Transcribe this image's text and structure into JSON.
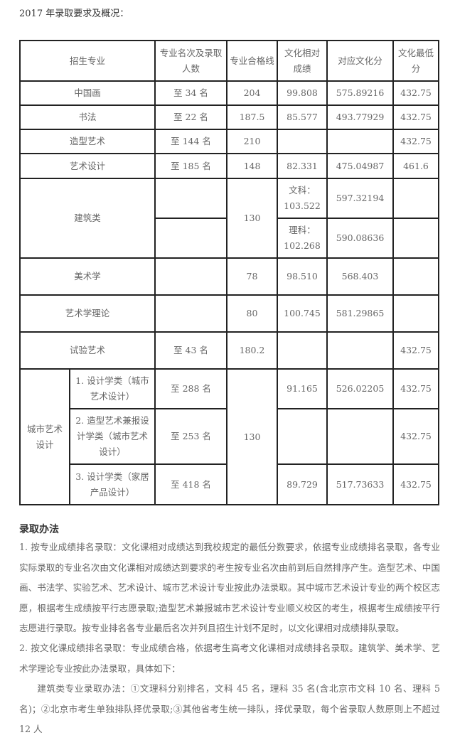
{
  "heading": "2017 年录取要求及概况：",
  "table": {
    "headers": [
      "招生专业",
      "专业名次及录取人数",
      "专业合格线",
      "文化相对成绩",
      "对应文化分",
      "文化最低分"
    ],
    "rows": [
      {
        "major": "中国画",
        "rank": "至 34 名",
        "pass": "204",
        "rel": "99.808",
        "score": "575.89216",
        "min": "432.75"
      },
      {
        "major": "书法",
        "rank": "至 22 名",
        "pass": "187.5",
        "rel": "85.577",
        "score": "493.77929",
        "min": "432.75"
      },
      {
        "major": "造型艺术",
        "rank": "至 144 名",
        "pass": "210",
        "rel": "",
        "score": "",
        "min": "432.75"
      },
      {
        "major": "艺术设计",
        "rank": "至 185 名",
        "pass": "148",
        "rel": "82.331",
        "score": "475.04987",
        "min": "461.6"
      }
    ],
    "arch": {
      "major": "建筑类",
      "pass": "130",
      "rel_wen": "文科：103.522",
      "score_wen": "597.32194",
      "rel_li": "理科：102.268",
      "score_li": "590.08636"
    },
    "rows2": [
      {
        "major": "美术学",
        "rank": "",
        "pass": "78",
        "rel": "98.510",
        "score": "568.403",
        "min": ""
      },
      {
        "major": "艺术学理论",
        "rank": "",
        "pass": "80",
        "rel": "100.745",
        "score": "581.29865",
        "min": ""
      },
      {
        "major": "试验艺术",
        "rank": "至 43 名",
        "pass": "180.2",
        "rel": "",
        "score": "",
        "min": "432.75"
      }
    ],
    "city": {
      "major": "城市艺术设计",
      "pass": "130",
      "subs": [
        {
          "name": "1. 设计学类（城市艺术设计）",
          "rank": "至 288 名",
          "rel": "91.165",
          "score": "526.02205",
          "min": "432.75"
        },
        {
          "name": "2. 造型艺术兼报设计学类（城市艺术设计）",
          "rank": "至 253 名",
          "rel": "",
          "score": "",
          "min": "432.75"
        },
        {
          "name": "3. 设计学类（家居产品设计）",
          "rank": "至 418 名",
          "rel": "89.729",
          "score": "517.73633",
          "min": "432.75"
        }
      ]
    }
  },
  "section_title": "录取办法",
  "paragraphs": [
    "1. 按专业成绩排名录取：文化课相对成绩达到我校规定的最低分数要求，依据专业成绩排名录取，各专业实际录取的专业名次由文化课相对成绩达到要求的考生按专业名次由前到后自然排序产生。造型艺术、中国画、书法学、实验艺术、艺术设计、城市艺术设计专业按此办法录取。其中城市艺术设计专业的两个校区志愿，根据考生成绩按平行志愿录取;造型艺术兼报城市艺术设计专业顺义校区的考生，根据考生成绩按平行志愿进行录取。按专业排名各专业最后名次并列且招生计划不足时，以文化课相对成绩排队录取。",
    "2. 按文化课成绩排名录取：专业成绩合格，依据考生高考文化课相对成绩排名录取。建筑学、美术学、艺术学理论专业按此办法录取，具体如下：",
    "建筑类专业录取办法：①文理科分别排名，文科 45 名，理科 35 名(含北京市文科 10 名、理科 5 名)；②北京市考生单独排队择优录取;③其他省考生统一排队，择优录取，每个省录取人数原则上不超过 12 人"
  ]
}
